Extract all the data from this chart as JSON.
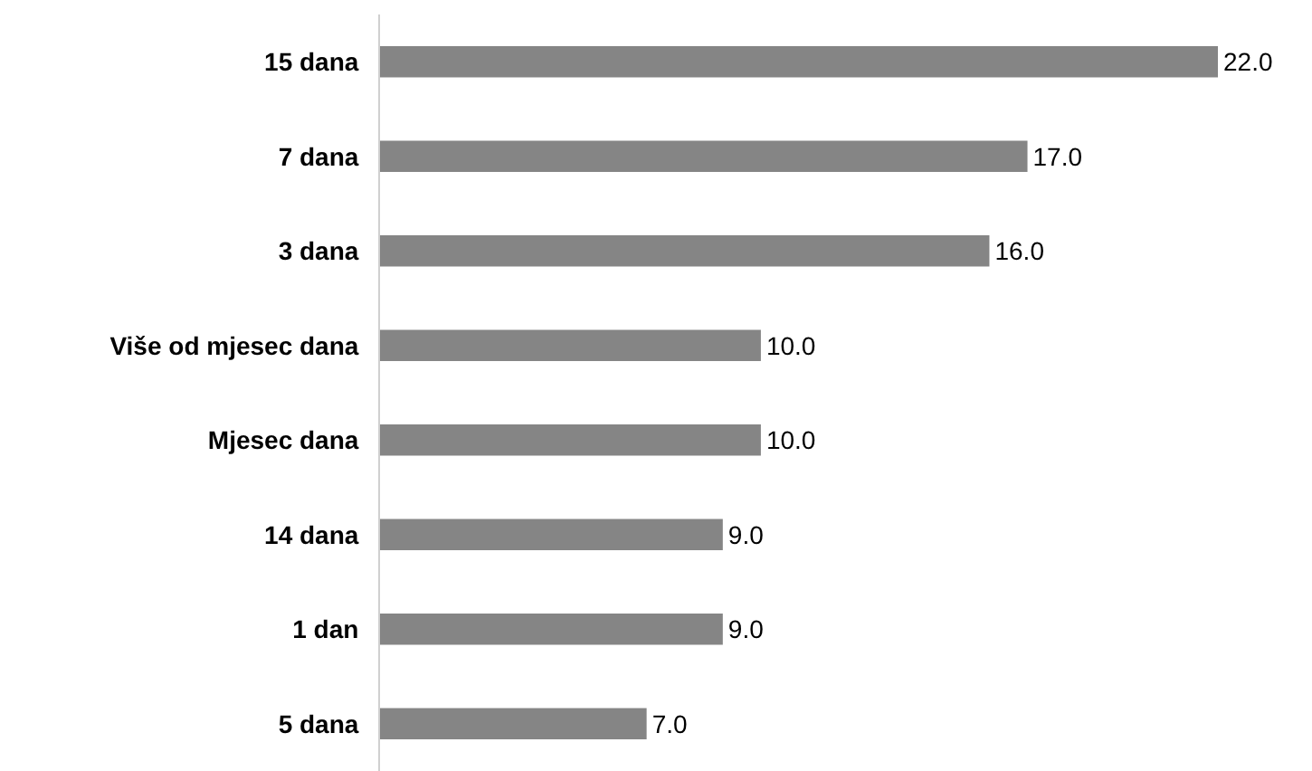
{
  "chart_data": {
    "type": "bar",
    "orientation": "horizontal",
    "categories": [
      "15 dana",
      "7 dana",
      "3 dana",
      "Više od mjesec dana",
      "Mjesec dana",
      "14 dana",
      "1 dan",
      "5 dana"
    ],
    "values": [
      22.0,
      17.0,
      16.0,
      10.0,
      10.0,
      9.0,
      9.0,
      7.0
    ],
    "value_labels": [
      "22.0",
      "17.0",
      "16.0",
      "10.0",
      "10.0",
      "9.0",
      "9.0",
      "7.0"
    ],
    "color": "#858585",
    "xlim": [
      0,
      22
    ],
    "tick_labels": "y"
  }
}
